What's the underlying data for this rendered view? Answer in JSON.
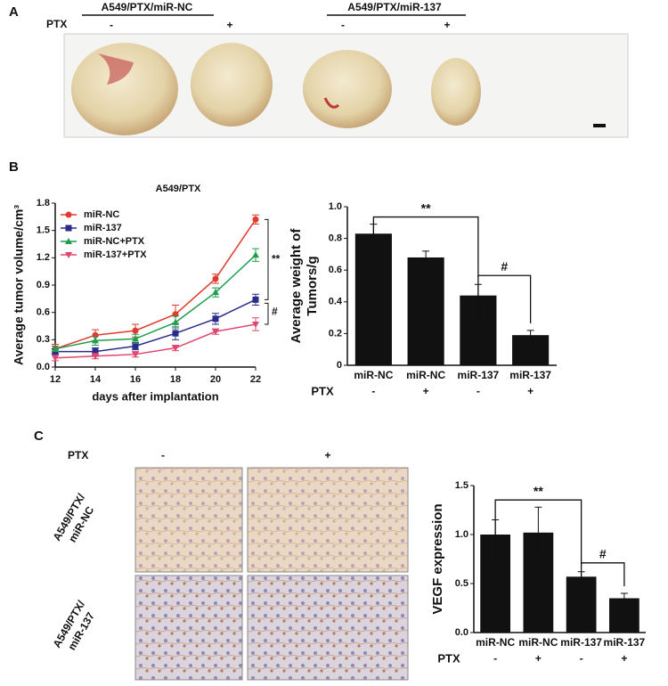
{
  "panels": {
    "a": "A",
    "b": "B",
    "c": "C"
  },
  "photo_top": {
    "groups": [
      "A549/PTX/miR-NC",
      "A549/PTX/miR-137"
    ],
    "ptx_label": "PTX",
    "signs": [
      "-",
      "+",
      "-",
      "+"
    ]
  },
  "ihc": {
    "ptx_label": "PTX",
    "signs": [
      "-",
      "+"
    ],
    "rows": [
      [
        "A549/PTX/",
        "miR-NC"
      ],
      [
        "A549/PTX/",
        "miR-137"
      ]
    ]
  },
  "chart_data": [
    {
      "type": "line",
      "title": "A549/PTX",
      "xlabel": "days after implantation",
      "ylabel": "Average tumor volume/cm³",
      "x": [
        12,
        14,
        16,
        18,
        20,
        22
      ],
      "xlim": [
        12,
        22
      ],
      "xticks": [
        12,
        14,
        16,
        18,
        20,
        22
      ],
      "ylim": [
        0,
        1.8
      ],
      "yticks": [
        {
          "value": 0,
          "label": "0.0"
        },
        0.3,
        0.6,
        0.9,
        1.2,
        1.5,
        1.8
      ],
      "series": [
        {
          "name": "miR-NC",
          "color": "#e23a2e",
          "marker": "circle",
          "values": [
            0.2,
            0.35,
            0.4,
            0.58,
            0.97,
            1.62
          ],
          "errors": [
            0.05,
            0.06,
            0.07,
            0.1,
            0.05,
            0.05
          ]
        },
        {
          "name": "miR-137",
          "color": "#2b2b8c",
          "marker": "square",
          "values": [
            0.17,
            0.17,
            0.23,
            0.37,
            0.53,
            0.74
          ],
          "errors": [
            0.03,
            0.04,
            0.04,
            0.07,
            0.06,
            0.06
          ]
        },
        {
          "name": "miR-NC+PTX",
          "color": "#1f9e4e",
          "marker": "triangle",
          "values": [
            0.2,
            0.29,
            0.31,
            0.49,
            0.82,
            1.23
          ],
          "errors": [
            0.03,
            0.05,
            0.05,
            0.07,
            0.05,
            0.07
          ]
        },
        {
          "name": "miR-137+PTX",
          "color": "#e0466e",
          "marker": "triangle-down",
          "values": [
            0.1,
            0.12,
            0.14,
            0.21,
            0.39,
            0.47
          ],
          "errors": [
            0.03,
            0.03,
            0.03,
            0.03,
            0.03,
            0.07
          ]
        }
      ],
      "annotations": [
        "**",
        "#"
      ]
    },
    {
      "type": "bar",
      "ylabel": [
        "Average weight of",
        "Tumors/g"
      ],
      "categories": [
        "miR-NC",
        "miR-NC",
        "miR-137",
        "miR-137"
      ],
      "ptx_label": "PTX",
      "ptx": [
        "-",
        "+",
        "-",
        "+"
      ],
      "color": "#111111",
      "values": [
        0.83,
        0.68,
        0.44,
        0.19
      ],
      "errors": [
        0.06,
        0.04,
        0.07,
        0.03
      ],
      "ylim": [
        0,
        1.0
      ],
      "yticks": [
        0,
        0.2,
        0.4,
        0.6,
        0.8,
        {
          "value": 1.0,
          "label": "1.0"
        }
      ],
      "annotations": [
        "**",
        "#"
      ]
    },
    {
      "type": "bar",
      "ylabel": [
        "VEGF expression"
      ],
      "categories": [
        "miR-NC",
        "miR-NC",
        "miR-137",
        "miR-137"
      ],
      "ptx_label": "PTX",
      "ptx": [
        "-",
        "+",
        "-",
        "+"
      ],
      "color": "#111111",
      "values": [
        1.0,
        1.02,
        0.57,
        0.35
      ],
      "errors": [
        0.15,
        0.26,
        0.05,
        0.05
      ],
      "ylim": [
        0,
        1.5
      ],
      "yticks": [
        {
          "value": 0,
          "label": "0.0"
        },
        0.5,
        {
          "value": 1.0,
          "label": "1.0"
        },
        1.5
      ],
      "annotations": [
        "**",
        "#"
      ]
    }
  ]
}
